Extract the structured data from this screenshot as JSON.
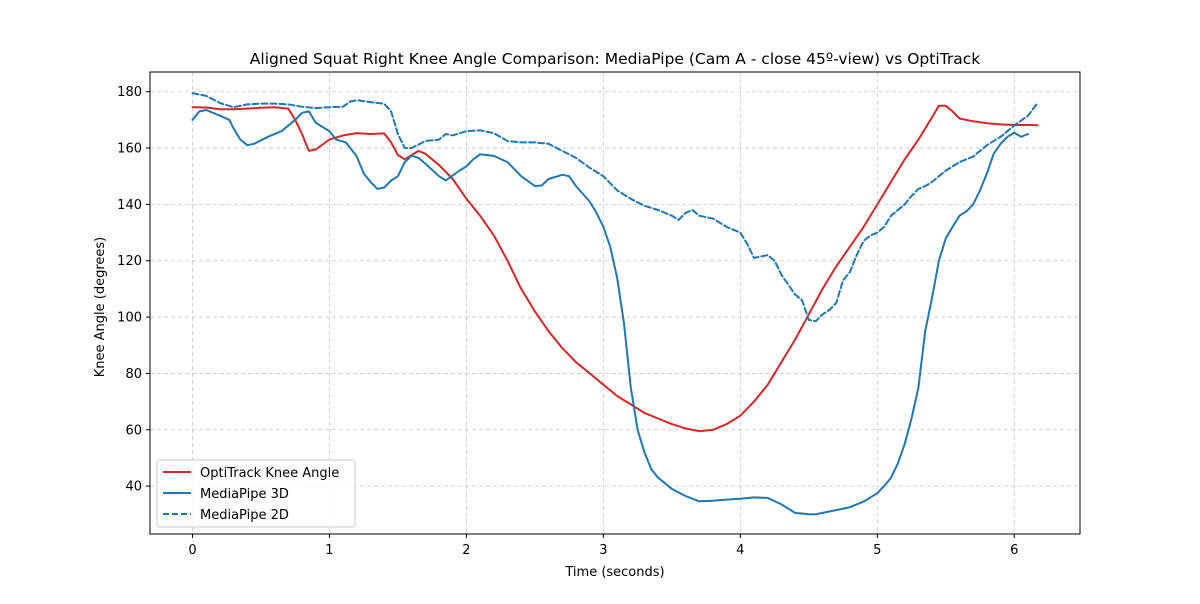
{
  "chart_data": {
    "type": "line",
    "title": "Aligned Squat Right Knee Angle Comparison: MediaPipe (Cam A - close 45º-view) vs OptiTrack",
    "xlabel": "Time (seconds)",
    "ylabel": "Knee Angle (degrees)",
    "xlim": [
      -0.31,
      6.48
    ],
    "ylim": [
      23,
      187
    ],
    "xticks": [
      0,
      1,
      2,
      3,
      4,
      5,
      6
    ],
    "yticks": [
      40,
      60,
      80,
      100,
      120,
      140,
      160,
      180
    ],
    "grid": true,
    "legend_position": "lower-left",
    "series": [
      {
        "name": "OptiTrack Knee Angle",
        "color": "#d62728",
        "dash": "solid",
        "points": [
          [
            0,
            174.5
          ],
          [
            0.1,
            174.4
          ],
          [
            0.2,
            173.8
          ],
          [
            0.3,
            173.8
          ],
          [
            0.4,
            174
          ],
          [
            0.5,
            174.3
          ],
          [
            0.6,
            174.5
          ],
          [
            0.7,
            174
          ],
          [
            0.75,
            170
          ],
          [
            0.8,
            165
          ],
          [
            0.85,
            159
          ],
          [
            0.9,
            159.5
          ],
          [
            1.0,
            163
          ],
          [
            1.1,
            164.5
          ],
          [
            1.2,
            165.3
          ],
          [
            1.3,
            165
          ],
          [
            1.4,
            165.2
          ],
          [
            1.45,
            162
          ],
          [
            1.5,
            157.5
          ],
          [
            1.55,
            156
          ],
          [
            1.6,
            157.5
          ],
          [
            1.65,
            159
          ],
          [
            1.7,
            158
          ],
          [
            1.8,
            154
          ],
          [
            1.9,
            149
          ],
          [
            2.0,
            142
          ],
          [
            2.1,
            136
          ],
          [
            2.2,
            129
          ],
          [
            2.3,
            120
          ],
          [
            2.4,
            110
          ],
          [
            2.5,
            102
          ],
          [
            2.6,
            95
          ],
          [
            2.7,
            89
          ],
          [
            2.8,
            84
          ],
          [
            2.9,
            80
          ],
          [
            3.0,
            76
          ],
          [
            3.1,
            72
          ],
          [
            3.2,
            69
          ],
          [
            3.3,
            66
          ],
          [
            3.4,
            64
          ],
          [
            3.5,
            62
          ],
          [
            3.6,
            60.5
          ],
          [
            3.7,
            59.5
          ],
          [
            3.8,
            60
          ],
          [
            3.9,
            62
          ],
          [
            4.0,
            65
          ],
          [
            4.1,
            70
          ],
          [
            4.2,
            76
          ],
          [
            4.3,
            84
          ],
          [
            4.4,
            92
          ],
          [
            4.5,
            101
          ],
          [
            4.6,
            110
          ],
          [
            4.7,
            118
          ],
          [
            4.8,
            125
          ],
          [
            4.9,
            132
          ],
          [
            5.0,
            140
          ],
          [
            5.1,
            148
          ],
          [
            5.2,
            156
          ],
          [
            5.3,
            163
          ],
          [
            5.4,
            171
          ],
          [
            5.45,
            175
          ],
          [
            5.5,
            175
          ],
          [
            5.55,
            173
          ],
          [
            5.6,
            170.5
          ],
          [
            5.7,
            169.5
          ],
          [
            5.8,
            168.8
          ],
          [
            5.9,
            168.4
          ],
          [
            6.0,
            168.2
          ],
          [
            6.1,
            168.2
          ],
          [
            6.17,
            168.1
          ]
        ]
      },
      {
        "name": "MediaPipe 3D",
        "color": "#1f77b4",
        "dash": "solid",
        "points": [
          [
            0,
            170
          ],
          [
            0.05,
            173
          ],
          [
            0.1,
            173.5
          ],
          [
            0.15,
            172.5
          ],
          [
            0.2,
            171.5
          ],
          [
            0.27,
            170
          ],
          [
            0.3,
            167
          ],
          [
            0.35,
            163
          ],
          [
            0.4,
            161
          ],
          [
            0.45,
            161.5
          ],
          [
            0.55,
            164
          ],
          [
            0.65,
            166
          ],
          [
            0.75,
            170
          ],
          [
            0.8,
            172.5
          ],
          [
            0.85,
            173
          ],
          [
            0.9,
            169
          ],
          [
            1.0,
            166
          ],
          [
            1.05,
            163
          ],
          [
            1.12,
            162
          ],
          [
            1.2,
            157
          ],
          [
            1.25,
            151
          ],
          [
            1.3,
            148
          ],
          [
            1.35,
            145.5
          ],
          [
            1.4,
            146
          ],
          [
            1.45,
            148.5
          ],
          [
            1.5,
            150
          ],
          [
            1.55,
            155
          ],
          [
            1.6,
            157.3
          ],
          [
            1.65,
            156.5
          ],
          [
            1.7,
            154.5
          ],
          [
            1.8,
            150
          ],
          [
            1.85,
            148.5
          ],
          [
            1.95,
            152
          ],
          [
            2.0,
            153.5
          ],
          [
            2.05,
            156
          ],
          [
            2.1,
            157.8
          ],
          [
            2.2,
            157.2
          ],
          [
            2.3,
            155
          ],
          [
            2.4,
            150
          ],
          [
            2.5,
            146.5
          ],
          [
            2.55,
            146.7
          ],
          [
            2.6,
            149
          ],
          [
            2.7,
            150.5
          ],
          [
            2.75,
            150
          ],
          [
            2.8,
            146.5
          ],
          [
            2.9,
            141
          ],
          [
            2.95,
            137
          ],
          [
            3.0,
            132
          ],
          [
            3.05,
            125
          ],
          [
            3.1,
            114
          ],
          [
            3.15,
            98
          ],
          [
            3.2,
            75
          ],
          [
            3.25,
            60
          ],
          [
            3.3,
            52
          ],
          [
            3.35,
            46
          ],
          [
            3.4,
            43
          ],
          [
            3.5,
            39
          ],
          [
            3.6,
            36.5
          ],
          [
            3.7,
            34.6
          ],
          [
            3.8,
            34.8
          ],
          [
            3.9,
            35.2
          ],
          [
            4.0,
            35.5
          ],
          [
            4.1,
            36
          ],
          [
            4.2,
            35.8
          ],
          [
            4.3,
            33.5
          ],
          [
            4.4,
            30.5
          ],
          [
            4.5,
            30
          ],
          [
            4.55,
            30
          ],
          [
            4.6,
            30.5
          ],
          [
            4.7,
            31.5
          ],
          [
            4.8,
            32.5
          ],
          [
            4.9,
            34.5
          ],
          [
            5.0,
            37.5
          ],
          [
            5.05,
            40
          ],
          [
            5.1,
            43
          ],
          [
            5.15,
            48
          ],
          [
            5.2,
            55
          ],
          [
            5.25,
            64
          ],
          [
            5.3,
            75
          ],
          [
            5.35,
            95
          ],
          [
            5.4,
            107
          ],
          [
            5.45,
            120
          ],
          [
            5.5,
            128
          ],
          [
            5.55,
            132
          ],
          [
            5.6,
            136
          ],
          [
            5.65,
            137.5
          ],
          [
            5.7,
            140
          ],
          [
            5.75,
            145
          ],
          [
            5.8,
            151
          ],
          [
            5.85,
            158
          ],
          [
            5.9,
            161.5
          ],
          [
            5.95,
            164
          ],
          [
            6.0,
            165.5
          ],
          [
            6.05,
            164
          ],
          [
            6.1,
            165
          ]
        ]
      },
      {
        "name": "MediaPipe 2D",
        "color": "#1f77b4",
        "dash": "dashed",
        "points": [
          [
            0,
            179.5
          ],
          [
            0.1,
            178.5
          ],
          [
            0.2,
            176
          ],
          [
            0.3,
            174.5
          ],
          [
            0.4,
            175.5
          ],
          [
            0.5,
            175.8
          ],
          [
            0.6,
            175.8
          ],
          [
            0.7,
            175.5
          ],
          [
            0.8,
            174.7
          ],
          [
            0.9,
            174.2
          ],
          [
            1.0,
            174.5
          ],
          [
            1.1,
            174.7
          ],
          [
            1.15,
            176.5
          ],
          [
            1.2,
            177
          ],
          [
            1.3,
            176.3
          ],
          [
            1.4,
            175.7
          ],
          [
            1.45,
            173
          ],
          [
            1.5,
            165
          ],
          [
            1.55,
            160
          ],
          [
            1.6,
            160
          ],
          [
            1.7,
            162.5
          ],
          [
            1.8,
            163
          ],
          [
            1.85,
            165
          ],
          [
            1.9,
            164.5
          ],
          [
            2.0,
            166
          ],
          [
            2.1,
            166.3
          ],
          [
            2.2,
            165.3
          ],
          [
            2.3,
            162.5
          ],
          [
            2.4,
            162
          ],
          [
            2.5,
            162
          ],
          [
            2.6,
            161.5
          ],
          [
            2.7,
            159
          ],
          [
            2.8,
            156.5
          ],
          [
            2.9,
            153
          ],
          [
            3.0,
            150
          ],
          [
            3.1,
            145
          ],
          [
            3.2,
            142
          ],
          [
            3.3,
            139.5
          ],
          [
            3.4,
            138
          ],
          [
            3.5,
            136
          ],
          [
            3.55,
            134.5
          ],
          [
            3.6,
            137
          ],
          [
            3.65,
            138
          ],
          [
            3.7,
            136
          ],
          [
            3.8,
            135
          ],
          [
            3.9,
            132
          ],
          [
            4.0,
            130
          ],
          [
            4.05,
            126
          ],
          [
            4.1,
            121
          ],
          [
            4.15,
            121.5
          ],
          [
            4.2,
            122
          ],
          [
            4.25,
            120
          ],
          [
            4.3,
            115
          ],
          [
            4.4,
            108
          ],
          [
            4.45,
            106
          ],
          [
            4.5,
            99
          ],
          [
            4.55,
            98.5
          ],
          [
            4.6,
            101
          ],
          [
            4.65,
            102.5
          ],
          [
            4.7,
            105
          ],
          [
            4.75,
            113
          ],
          [
            4.8,
            116
          ],
          [
            4.85,
            122
          ],
          [
            4.9,
            127
          ],
          [
            4.95,
            129
          ],
          [
            5.0,
            130
          ],
          [
            5.05,
            132
          ],
          [
            5.1,
            136
          ],
          [
            5.2,
            140
          ],
          [
            5.25,
            143
          ],
          [
            5.3,
            145.5
          ],
          [
            5.35,
            146.5
          ],
          [
            5.4,
            148
          ],
          [
            5.45,
            150
          ],
          [
            5.5,
            152
          ],
          [
            5.6,
            155
          ],
          [
            5.7,
            157
          ],
          [
            5.8,
            161
          ],
          [
            5.9,
            164
          ],
          [
            6.0,
            168
          ],
          [
            6.1,
            171.5
          ],
          [
            6.17,
            176
          ]
        ]
      }
    ]
  }
}
